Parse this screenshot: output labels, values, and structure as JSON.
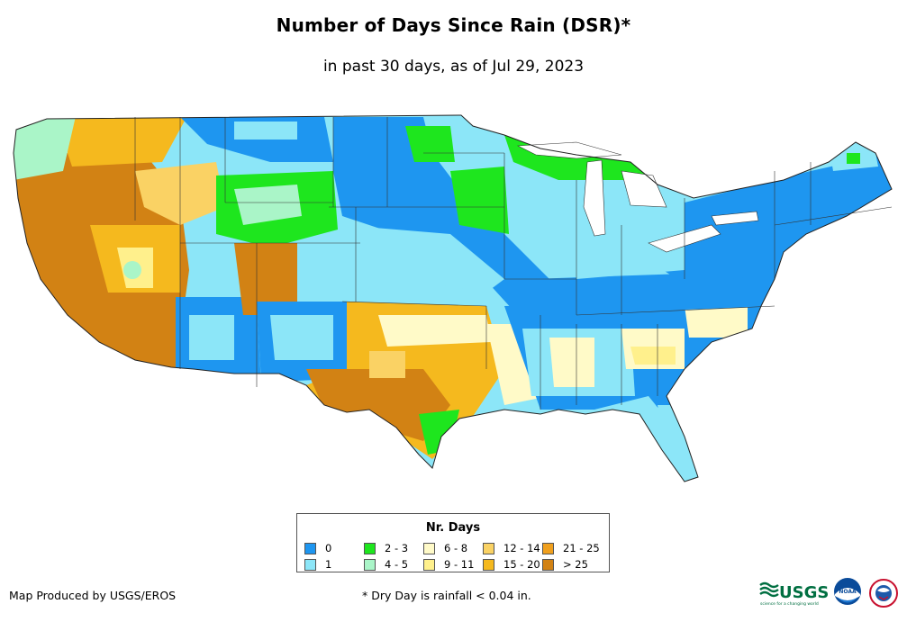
{
  "title": "Number of Days Since Rain (DSR)*",
  "subtitle": "in past 30 days, as of Jul 29, 2023",
  "legend": {
    "title": "Nr. Days",
    "items": [
      {
        "label": "0",
        "color": "#1e96f0"
      },
      {
        "label": "1",
        "color": "#8ce6f8"
      },
      {
        "label": "2 - 3",
        "color": "#1ee61e"
      },
      {
        "label": "4 - 5",
        "color": "#aaf5c8"
      },
      {
        "label": "6 - 8",
        "color": "#fffac8"
      },
      {
        "label": "9 - 11",
        "color": "#fff08c"
      },
      {
        "label": "12 - 14",
        "color": "#fad264"
      },
      {
        "label": "15 - 20",
        "color": "#f5b91e"
      },
      {
        "label": "21 - 25",
        "color": "#f0a01e"
      },
      {
        "label": "> 25",
        "color": "#d28214"
      }
    ]
  },
  "footer": {
    "producer": "Map Produced by USGS/EROS",
    "note": "* Dry Day is rainfall < 0.04 in."
  },
  "logos": {
    "usgs": "USGS",
    "usgs_tagline": "science for a changing world",
    "noaa": "NOAA"
  }
}
